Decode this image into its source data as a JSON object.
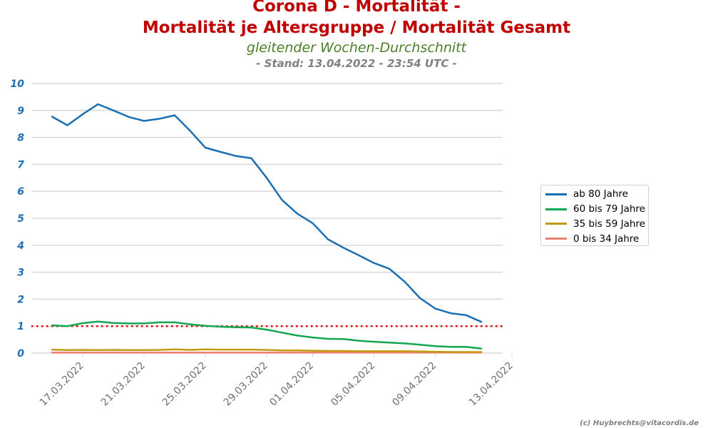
{
  "header": {
    "title_line1": "Corona D - Mortalität -",
    "title_line2": "Mortalität je Altersgruppe / Mortalität Gesamt",
    "subtitle": "gleitender Wochen-Durchschnitt",
    "stand": "- Stand: 13.04.2022 - 23:54 UTC -"
  },
  "credit": "(c) Huybrechts@vitacordis.de",
  "chart_data": {
    "type": "line",
    "title": "Corona D - Mortalität - Mortalität je Altersgruppe / Mortalität Gesamt",
    "subtitle": "gleitender Wochen-Durchschnitt",
    "x": [
      "15.03.2022",
      "16.03.2022",
      "17.03.2022",
      "18.03.2022",
      "19.03.2022",
      "20.03.2022",
      "21.03.2022",
      "22.03.2022",
      "23.03.2022",
      "24.03.2022",
      "25.03.2022",
      "26.03.2022",
      "27.03.2022",
      "28.03.2022",
      "29.03.2022",
      "30.03.2022",
      "31.03.2022",
      "01.04.2022",
      "02.04.2022",
      "03.04.2022",
      "04.04.2022",
      "05.04.2022",
      "06.04.2022",
      "07.04.2022",
      "08.04.2022",
      "09.04.2022",
      "10.04.2022",
      "11.04.2022",
      "12.04.2022"
    ],
    "x_tick_labels": [
      "17.03.2022",
      "21.03.2022",
      "25.03.2022",
      "29.03.2022",
      "01.04.2022",
      "05.04.2022",
      "09.04.2022",
      "13.04.2022"
    ],
    "ylim": [
      0,
      10
    ],
    "y_ticks": [
      "0",
      "1",
      "2",
      "3",
      "4",
      "5",
      "6",
      "7",
      "8",
      "9",
      "10"
    ],
    "grid": "horizontal",
    "legend_position": "right",
    "reference_line": {
      "y": 1,
      "style": "dotted",
      "color": "#e00000"
    },
    "series": [
      {
        "name": "ab 80 Jahre",
        "color": "#1a6fb5",
        "values": [
          8.77,
          8.45,
          8.86,
          9.23,
          9.0,
          8.76,
          8.61,
          8.69,
          8.82,
          8.25,
          7.62,
          7.46,
          7.31,
          7.23,
          6.5,
          5.68,
          5.17,
          4.82,
          4.22,
          3.91,
          3.63,
          3.34,
          3.13,
          2.65,
          2.04,
          1.65,
          1.48,
          1.41,
          1.16
        ]
      },
      {
        "name": "60 bis 79 Jahre",
        "color": "#12a650",
        "values": [
          1.03,
          1.0,
          1.11,
          1.17,
          1.12,
          1.1,
          1.1,
          1.14,
          1.14,
          1.07,
          1.01,
          0.98,
          0.96,
          0.95,
          0.87,
          0.76,
          0.65,
          0.58,
          0.53,
          0.52,
          0.46,
          0.42,
          0.39,
          0.36,
          0.31,
          0.26,
          0.23,
          0.23,
          0.17
        ]
      },
      {
        "name": "35 bis 59 Jahre",
        "color": "#c29a12",
        "values": [
          0.13,
          0.11,
          0.12,
          0.11,
          0.12,
          0.11,
          0.11,
          0.12,
          0.14,
          0.12,
          0.14,
          0.13,
          0.13,
          0.13,
          0.12,
          0.1,
          0.1,
          0.09,
          0.08,
          0.08,
          0.07,
          0.07,
          0.07,
          0.07,
          0.06,
          0.05,
          0.04,
          0.04,
          0.04
        ]
      },
      {
        "name": "0 bis 34 Jahre",
        "color": "#f08070",
        "values": [
          0.02,
          0.02,
          0.02,
          0.02,
          0.02,
          0.02,
          0.02,
          0.02,
          0.02,
          0.02,
          0.02,
          0.02,
          0.02,
          0.02,
          0.02,
          0.02,
          0.02,
          0.02,
          0.02,
          0.02,
          0.02,
          0.02,
          0.02,
          0.02,
          0.02,
          0.02,
          0.02,
          0.02,
          0.02
        ]
      }
    ]
  }
}
